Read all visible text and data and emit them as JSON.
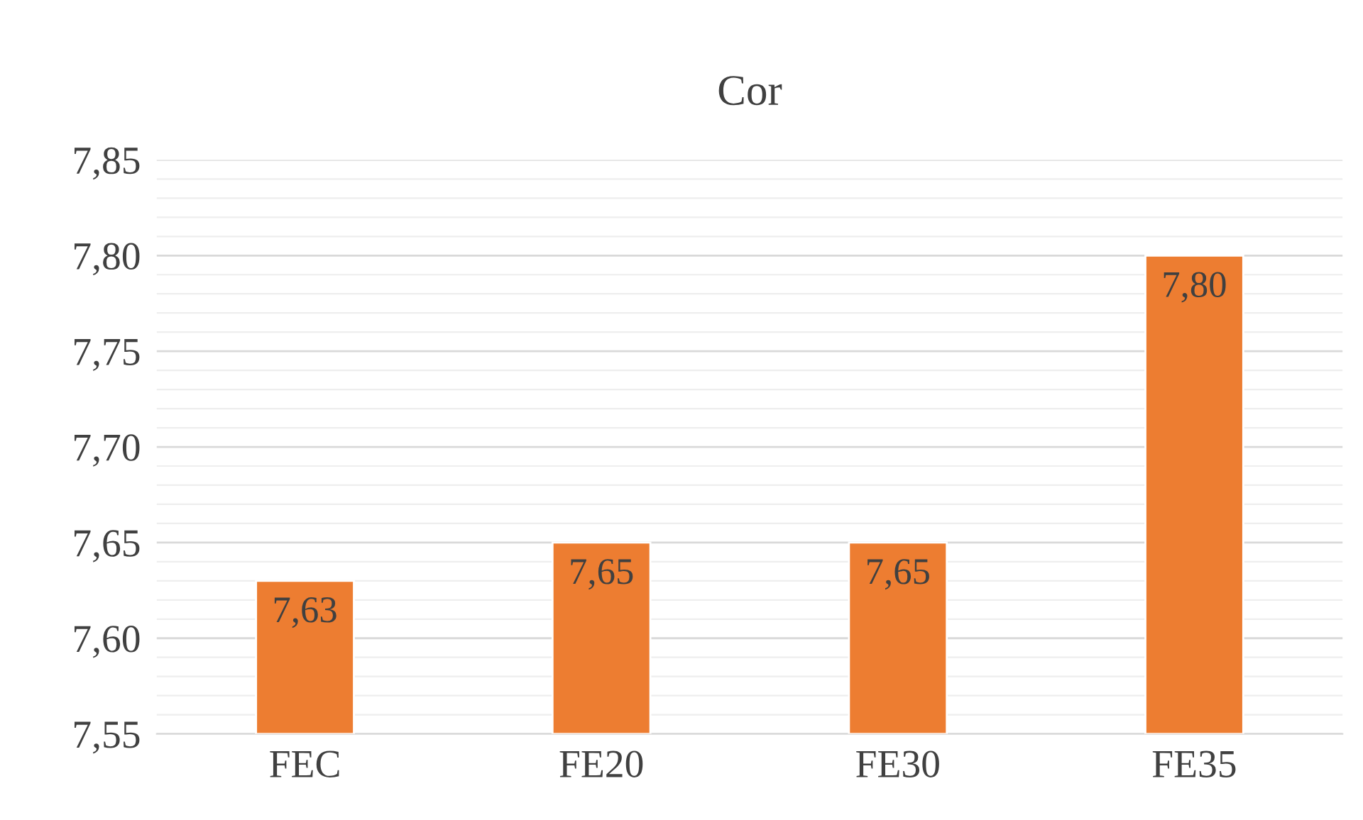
{
  "chart_data": {
    "type": "bar",
    "title": "Cor",
    "categories": [
      "FEC",
      "FE20",
      "FE30",
      "FE35"
    ],
    "values": [
      7.63,
      7.65,
      7.65,
      7.8
    ],
    "value_labels": [
      "7,63",
      "7,65",
      "7,65",
      "7,80"
    ],
    "color": "#ed7d31",
    "ylim": [
      7.55,
      7.85
    ],
    "yticks": [
      {
        "value": 7.55,
        "label": "7,55"
      },
      {
        "value": 7.6,
        "label": "7,60"
      },
      {
        "value": 7.65,
        "label": "7,65"
      },
      {
        "value": 7.7,
        "label": "7,70"
      },
      {
        "value": 7.75,
        "label": "7,75"
      },
      {
        "value": 7.8,
        "label": "7,80"
      },
      {
        "value": 7.85,
        "label": "7,85"
      }
    ],
    "grid": "y"
  }
}
